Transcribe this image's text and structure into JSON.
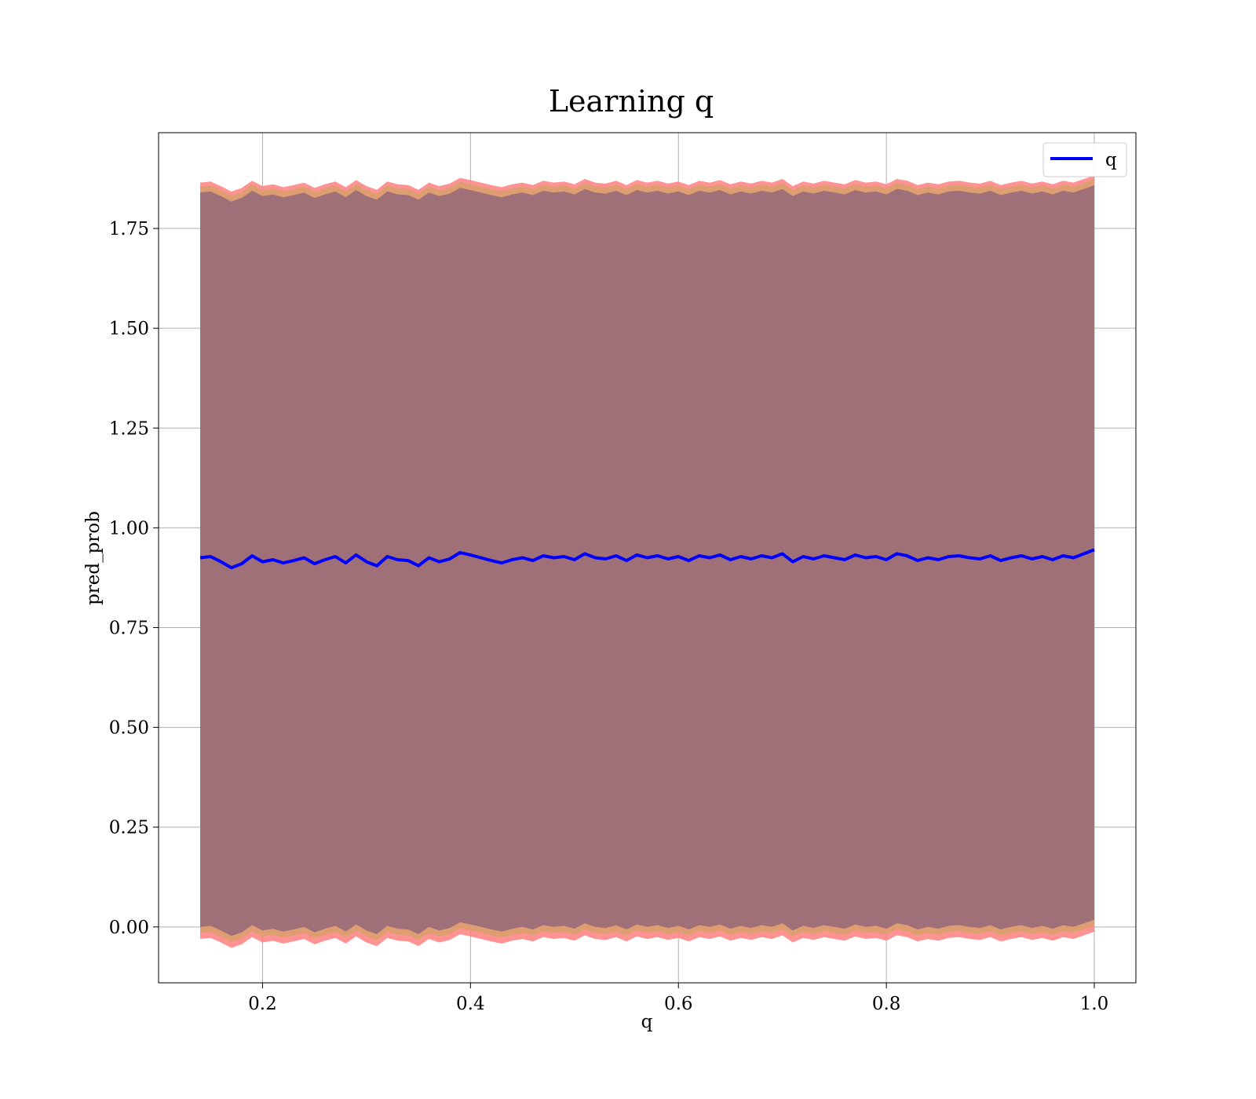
{
  "chart_data": {
    "type": "line",
    "title": "Learning q",
    "xlabel": "q",
    "ylabel": "pred_prob",
    "xlim": [
      0.1,
      1.04
    ],
    "ylim": [
      -0.14,
      1.99
    ],
    "xticks": [
      0.2,
      0.4,
      0.6,
      0.8,
      1.0
    ],
    "xtick_labels": [
      "0.2",
      "0.4",
      "0.6",
      "0.8",
      "1.0"
    ],
    "yticks": [
      0.0,
      0.25,
      0.5,
      0.75,
      1.0,
      1.25,
      1.5,
      1.75
    ],
    "ytick_labels": [
      "0.00",
      "0.25",
      "0.50",
      "0.75",
      "1.00",
      "1.25",
      "1.50",
      "1.75"
    ],
    "grid": true,
    "legend": {
      "placement": "upper-right",
      "entries": [
        "q"
      ]
    },
    "series": [
      {
        "name": "q",
        "color": "#0000ff",
        "x": [
          0.14,
          0.15,
          0.16,
          0.17,
          0.18,
          0.19,
          0.2,
          0.21,
          0.22,
          0.23,
          0.24,
          0.25,
          0.26,
          0.27,
          0.28,
          0.29,
          0.3,
          0.31,
          0.32,
          0.33,
          0.34,
          0.35,
          0.36,
          0.37,
          0.38,
          0.39,
          0.4,
          0.41,
          0.42,
          0.43,
          0.44,
          0.45,
          0.46,
          0.47,
          0.48,
          0.49,
          0.5,
          0.51,
          0.52,
          0.53,
          0.54,
          0.55,
          0.56,
          0.57,
          0.58,
          0.59,
          0.6,
          0.61,
          0.62,
          0.63,
          0.64,
          0.65,
          0.66,
          0.67,
          0.68,
          0.69,
          0.7,
          0.71,
          0.72,
          0.73,
          0.74,
          0.75,
          0.76,
          0.77,
          0.78,
          0.79,
          0.8,
          0.81,
          0.82,
          0.83,
          0.84,
          0.85,
          0.86,
          0.87,
          0.88,
          0.89,
          0.9,
          0.91,
          0.92,
          0.93,
          0.94,
          0.95,
          0.96,
          0.97,
          0.98,
          0.99,
          1.0
        ],
        "y": [
          0.925,
          0.928,
          0.915,
          0.9,
          0.91,
          0.93,
          0.915,
          0.92,
          0.912,
          0.918,
          0.925,
          0.91,
          0.92,
          0.928,
          0.912,
          0.932,
          0.915,
          0.905,
          0.928,
          0.92,
          0.918,
          0.905,
          0.925,
          0.915,
          0.922,
          0.938,
          0.932,
          0.925,
          0.918,
          0.912,
          0.92,
          0.925,
          0.918,
          0.93,
          0.925,
          0.928,
          0.92,
          0.935,
          0.925,
          0.922,
          0.93,
          0.918,
          0.932,
          0.925,
          0.93,
          0.922,
          0.928,
          0.918,
          0.93,
          0.925,
          0.932,
          0.92,
          0.928,
          0.922,
          0.93,
          0.925,
          0.935,
          0.915,
          0.928,
          0.922,
          0.93,
          0.925,
          0.92,
          0.932,
          0.925,
          0.928,
          0.92,
          0.935,
          0.93,
          0.918,
          0.925,
          0.92,
          0.928,
          0.93,
          0.925,
          0.922,
          0.93,
          0.918,
          0.925,
          0.93,
          0.922,
          0.928,
          0.92,
          0.93,
          0.925,
          0.935,
          0.945
        ]
      }
    ],
    "bands": [
      {
        "color": "#ff7f7f",
        "lower": -0.03,
        "upper": 1.865
      },
      {
        "color": "#d9a06b",
        "lower": -0.015,
        "upper": 1.855
      },
      {
        "color": "#a07078",
        "lower": 0.0,
        "upper": 1.84
      }
    ]
  }
}
